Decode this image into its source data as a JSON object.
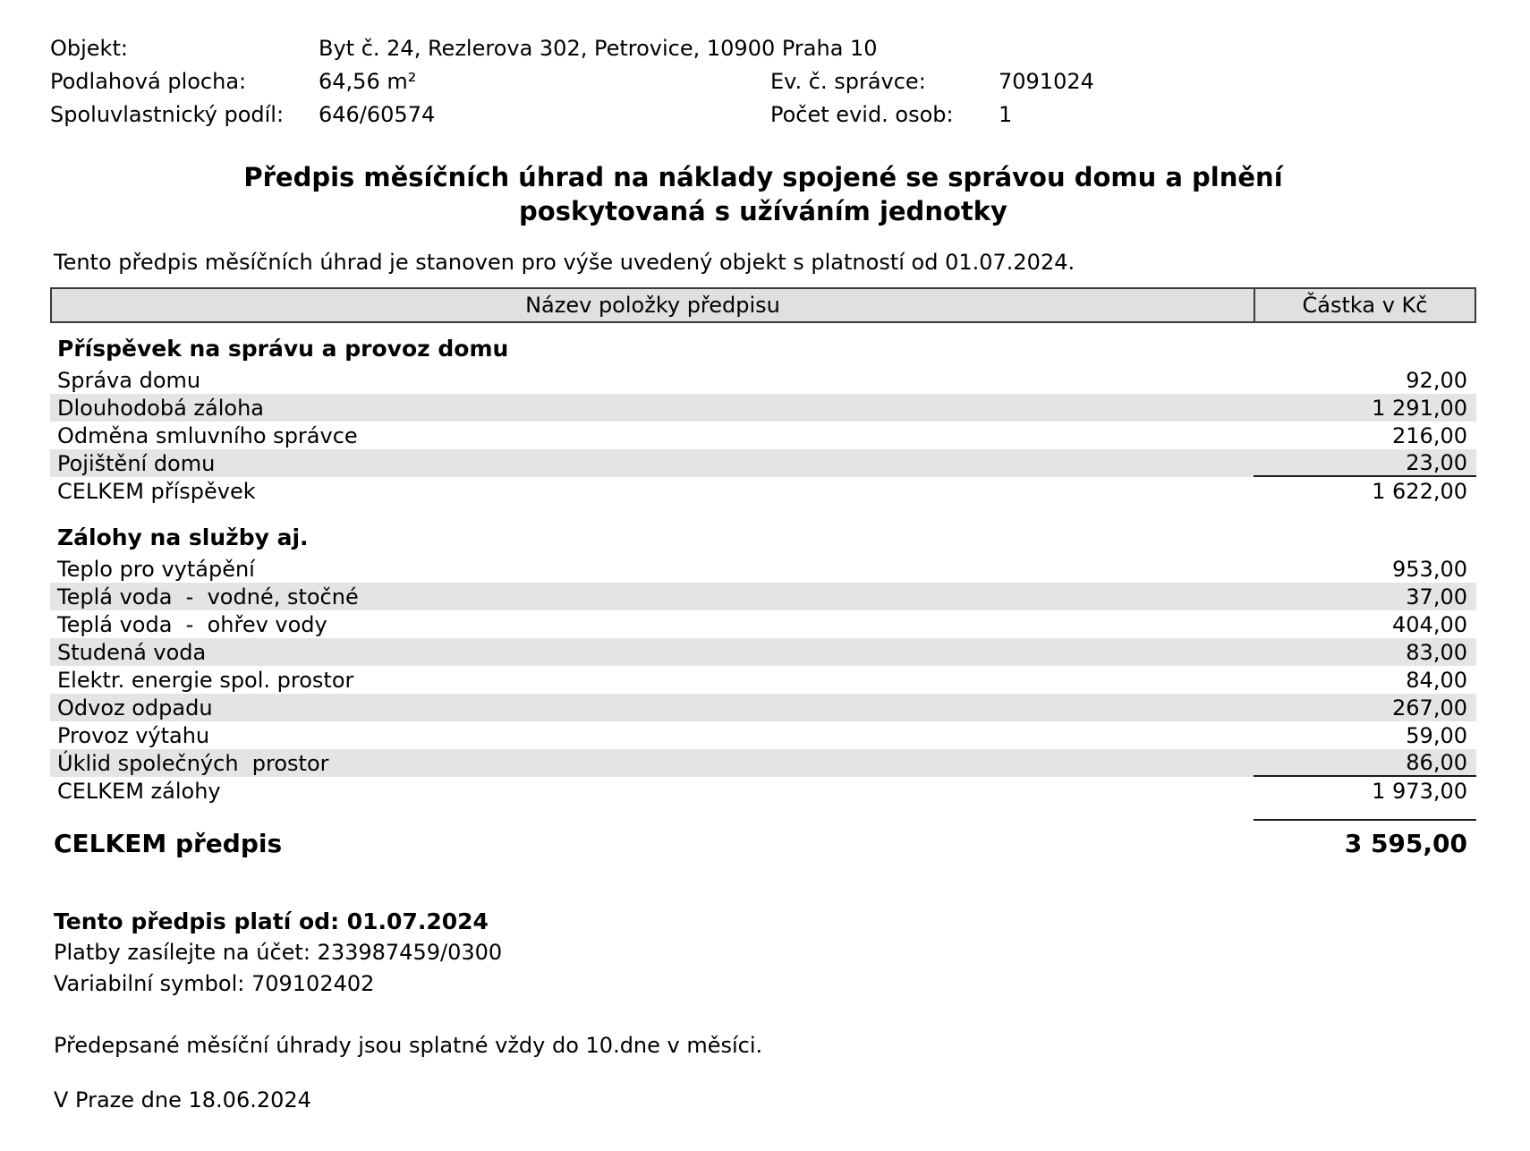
{
  "meta": {
    "objekt_label": "Objekt:",
    "objekt_value": "Byt č. 24, Rezlerova 302, Petrovice, 10900 Praha 10",
    "plocha_label": "Podlahová plocha:",
    "plocha_value": "64,56 m²",
    "podil_label": "Spoluvlastnický podíl:",
    "podil_value": "646/60574",
    "spravce_label": "Ev. č. správce:",
    "spravce_value": "7091024",
    "osob_label": "Počet evid. osob:",
    "osob_value": "1"
  },
  "title": {
    "line1": "Předpis měsíčních úhrad na náklady spojené se správou domu a plnění",
    "line2": "poskytovaná s užíváním jednotky"
  },
  "intro": "Tento předpis měsíčních úhrad je stanoven pro výše uvedený objekt s platností od 01.07.2024.",
  "table": {
    "col_name": "Název položky předpisu",
    "col_amount": "Částka v Kč",
    "sections": [
      {
        "header": "Příspěvek na správu a provoz domu",
        "rows": [
          {
            "label": "Správa domu",
            "amount": "92,00",
            "shaded": false,
            "sum_line": false
          },
          {
            "label": "Dlouhodobá záloha",
            "amount": "1 291,00",
            "shaded": true,
            "sum_line": false
          },
          {
            "label": "Odměna smluvního správce",
            "amount": "216,00",
            "shaded": false,
            "sum_line": false
          },
          {
            "label": "Pojištění domu",
            "amount": "23,00",
            "shaded": true,
            "sum_line": true
          }
        ],
        "total": {
          "label": "CELKEM příspěvek",
          "amount": "1 622,00"
        }
      },
      {
        "header": "Zálohy na služby aj.",
        "rows": [
          {
            "label": "Teplo pro vytápění",
            "amount": "953,00",
            "shaded": false,
            "sum_line": false
          },
          {
            "label": "Teplá voda  -  vodné, stočné",
            "amount": "37,00",
            "shaded": true,
            "sum_line": false
          },
          {
            "label": "Teplá voda  -  ohřev vody",
            "amount": "404,00",
            "shaded": false,
            "sum_line": false
          },
          {
            "label": "Studená voda",
            "amount": "83,00",
            "shaded": true,
            "sum_line": false
          },
          {
            "label": "Elektr. energie spol. prostor",
            "amount": "84,00",
            "shaded": false,
            "sum_line": false
          },
          {
            "label": "Odvoz odpadu",
            "amount": "267,00",
            "shaded": true,
            "sum_line": false
          },
          {
            "label": "Provoz výtahu",
            "amount": "59,00",
            "shaded": false,
            "sum_line": false
          },
          {
            "label": "Úklid společných  prostor",
            "amount": "86,00",
            "shaded": true,
            "sum_line": true
          }
        ],
        "total": {
          "label": "CELKEM zálohy",
          "amount": "1 973,00"
        }
      }
    ],
    "grand_total": {
      "label": "CELKEM předpis",
      "amount": "3 595,00"
    }
  },
  "footer": {
    "valid_from": "Tento předpis platí od: 01.07.2024",
    "account": "Platby zasílejte na účet: 233987459/0300",
    "symbol": "Variabilní symbol: 709102402",
    "due": "Předepsané měsíční úhrady jsou splatné vždy do 10.dne v měsíci.",
    "place_date": "V Praze dne 18.06.2024"
  },
  "colors": {
    "row_shade": "#e4e4e4",
    "header_shade": "#e0e0e0",
    "border": "#3a3a3a",
    "text": "#000000"
  }
}
